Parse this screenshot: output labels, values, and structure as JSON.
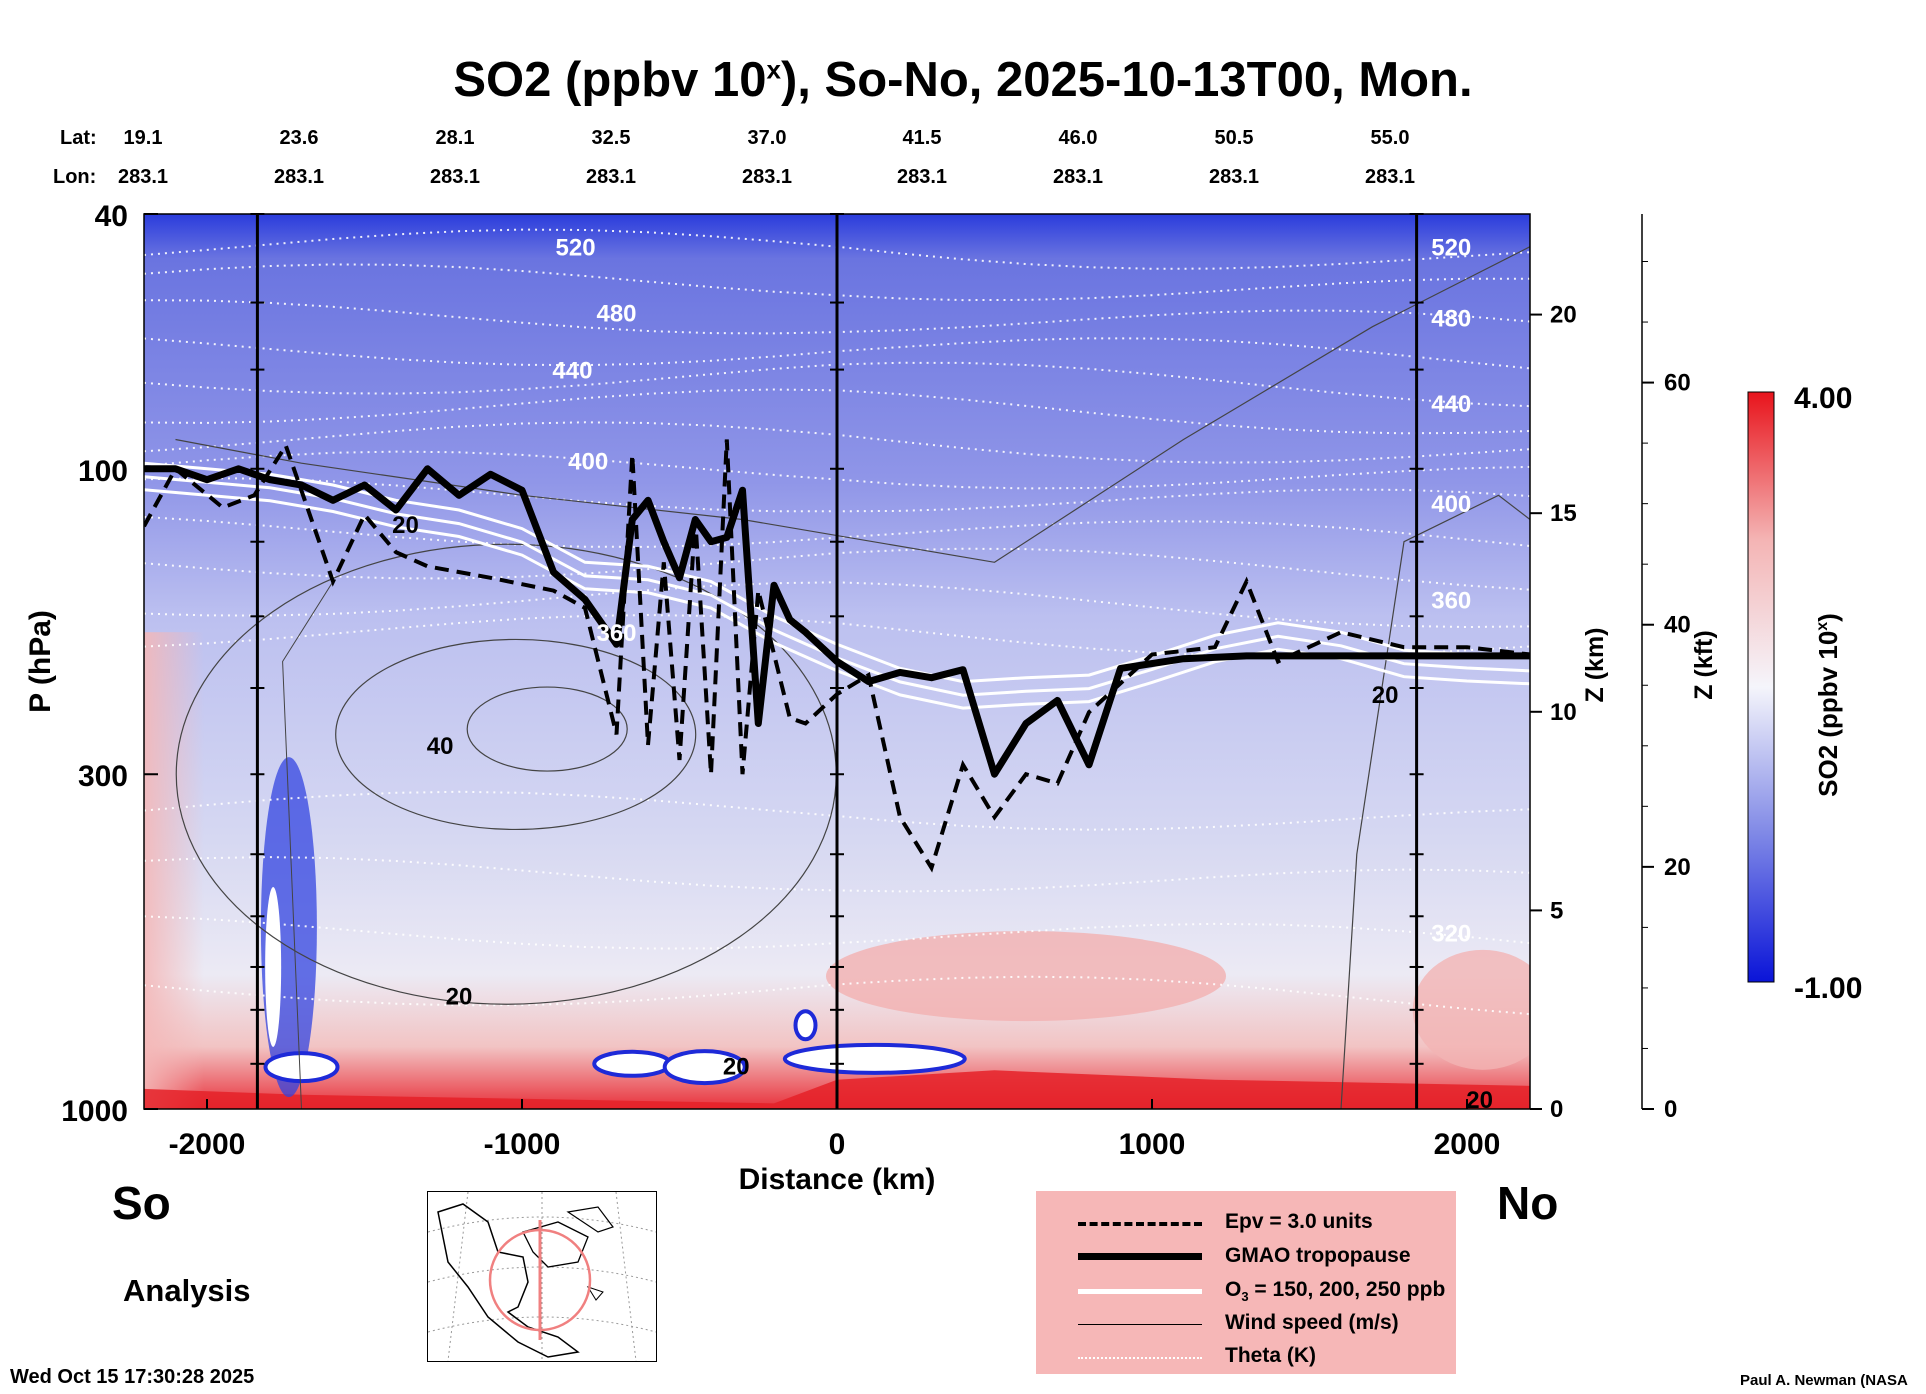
{
  "title": {
    "prefix": "SO2 (ppbv 10",
    "exp": "x",
    "suffix": "), So-No, 2025-10-13T00, Mon."
  },
  "header": {
    "lat_label": "Lat:",
    "lon_label": "Lon:",
    "lats": [
      "19.1",
      "23.6",
      "28.1",
      "32.5",
      "37.0",
      "41.5",
      "46.0",
      "50.5",
      "55.0"
    ],
    "lons": [
      "283.1",
      "283.1",
      "283.1",
      "283.1",
      "283.1",
      "283.1",
      "283.1",
      "283.1",
      "283.1"
    ]
  },
  "labels": {
    "so": "So",
    "no": "No",
    "analysis": "Analysis",
    "timestamp": "Wed Oct 15 17:30:28 2025",
    "credit": "Paul A. Newman (NASA"
  },
  "legend": {
    "epv": "Epv = 3.0 units",
    "tropopause": "GMAO tropopause",
    "ozone_prefix": "O",
    "ozone_sub": "3",
    "ozone_suffix": " = 150, 200, 250 ppb",
    "wind": "Wind speed (m/s)",
    "theta": "Theta (K)"
  },
  "chart_data": {
    "type": "heatmap",
    "title": "SO2 (ppbv 10^x), So-No, 2025-10-13T00, Mon.",
    "xlabel": "Distance (km)",
    "ylabel": "P (hPa)",
    "y2label": "Z (km)",
    "y3label": "Z (kft)",
    "xlim": [
      -2200,
      2200
    ],
    "x_ticks": [
      -2000,
      -1000,
      0,
      1000,
      2000
    ],
    "x_tick_labels": [
      "-2000",
      "-1000",
      "0",
      "1000",
      "2000"
    ],
    "ylim_hpa": [
      1000,
      40
    ],
    "y_ticks_hpa": [
      40,
      100,
      300,
      1000
    ],
    "y_tick_labels": [
      "40",
      "100",
      "300",
      "1000"
    ],
    "z_km_ticks": [
      0,
      5,
      10,
      15,
      20
    ],
    "z_km_tick_labels": [
      "0",
      "5",
      "10",
      "15",
      "20"
    ],
    "z_kft_ticks": [
      0,
      20,
      40,
      60
    ],
    "z_kft_tick_labels": [
      "0",
      "20",
      "40",
      "60"
    ],
    "colorbar": {
      "label": "SO2 (ppbv 10^x)",
      "min": -1.0,
      "max": 4.0,
      "min_label": "-1.00",
      "max_label": "4.00",
      "colors": [
        "#0a14d8",
        "#7f88e6",
        "#f5f5fb",
        "#f4b4b4",
        "#e8141c"
      ]
    },
    "vertical_lines_km": [
      -1840,
      0,
      1840
    ],
    "theta_labels": [
      {
        "x": -830,
        "p": 45,
        "text": "520"
      },
      {
        "x": 1950,
        "p": 45,
        "text": "520"
      },
      {
        "x": -700,
        "p": 57,
        "text": "480"
      },
      {
        "x": 1950,
        "p": 58,
        "text": "480"
      },
      {
        "x": -840,
        "p": 70,
        "text": "440"
      },
      {
        "x": 1950,
        "p": 79,
        "text": "440"
      },
      {
        "x": -790,
        "p": 97,
        "text": "400"
      },
      {
        "x": 1950,
        "p": 113,
        "text": "400"
      },
      {
        "x": 1950,
        "p": 160,
        "text": "360"
      },
      {
        "x": -700,
        "p": 180,
        "text": "360"
      },
      {
        "x": 1950,
        "p": 530,
        "text": "320"
      }
    ],
    "wind_labels": [
      {
        "x": -1370,
        "p": 122,
        "text": "20"
      },
      {
        "x": -1260,
        "p": 270,
        "text": "40"
      },
      {
        "x": -1200,
        "p": 665,
        "text": "20"
      },
      {
        "x": -320,
        "p": 855,
        "text": "20"
      },
      {
        "x": 1740,
        "p": 225,
        "text": "20"
      },
      {
        "x": 2040,
        "p": 965,
        "text": "20"
      }
    ],
    "tropopause_hpa": [
      [
        -2200,
        100
      ],
      [
        -2100,
        100
      ],
      [
        -2000,
        104
      ],
      [
        -1900,
        100
      ],
      [
        -1800,
        104
      ],
      [
        -1700,
        106
      ],
      [
        -1600,
        112
      ],
      [
        -1500,
        106
      ],
      [
        -1400,
        116
      ],
      [
        -1300,
        100
      ],
      [
        -1200,
        110
      ],
      [
        -1100,
        102
      ],
      [
        -1000,
        108
      ],
      [
        -900,
        145
      ],
      [
        -800,
        160
      ],
      [
        -700,
        188
      ],
      [
        -650,
        120
      ],
      [
        -600,
        112
      ],
      [
        -550,
        130
      ],
      [
        -500,
        148
      ],
      [
        -450,
        120
      ],
      [
        -400,
        130
      ],
      [
        -350,
        128
      ],
      [
        -300,
        108
      ],
      [
        -250,
        250
      ],
      [
        -200,
        152
      ],
      [
        -150,
        172
      ],
      [
        -100,
        180
      ],
      [
        0,
        200
      ],
      [
        100,
        215
      ],
      [
        200,
        208
      ],
      [
        300,
        212
      ],
      [
        400,
        206
      ],
      [
        500,
        300
      ],
      [
        600,
        250
      ],
      [
        700,
        230
      ],
      [
        800,
        290
      ],
      [
        900,
        205
      ],
      [
        1100,
        198
      ],
      [
        1300,
        196
      ],
      [
        1600,
        196
      ],
      [
        1800,
        196
      ],
      [
        2200,
        196
      ]
    ],
    "epv_hpa": [
      [
        -2200,
        123
      ],
      [
        -2100,
        100
      ],
      [
        -1950,
        115
      ],
      [
        -1850,
        110
      ],
      [
        -1750,
        92
      ],
      [
        -1600,
        150
      ],
      [
        -1500,
        118
      ],
      [
        -1400,
        135
      ],
      [
        -1300,
        142
      ],
      [
        -1100,
        148
      ],
      [
        -900,
        155
      ],
      [
        -800,
        165
      ],
      [
        -700,
        260
      ],
      [
        -650,
        95
      ],
      [
        -600,
        270
      ],
      [
        -550,
        140
      ],
      [
        -500,
        285
      ],
      [
        -450,
        120
      ],
      [
        -400,
        300
      ],
      [
        -350,
        90
      ],
      [
        -300,
        300
      ],
      [
        -250,
        155
      ],
      [
        -150,
        245
      ],
      [
        -100,
        250
      ],
      [
        0,
        225
      ],
      [
        100,
        210
      ],
      [
        200,
        350
      ],
      [
        300,
        420
      ],
      [
        400,
        290
      ],
      [
        500,
        350
      ],
      [
        600,
        300
      ],
      [
        700,
        310
      ],
      [
        800,
        240
      ],
      [
        1000,
        195
      ],
      [
        1200,
        190
      ],
      [
        1300,
        150
      ],
      [
        1400,
        200
      ],
      [
        1600,
        180
      ],
      [
        1800,
        190
      ],
      [
        2000,
        190
      ],
      [
        2200,
        195
      ]
    ],
    "ozone_hpa": [
      [
        -2200,
        98
      ],
      [
        -2000,
        100
      ],
      [
        -1800,
        102
      ],
      [
        -1600,
        106
      ],
      [
        -1400,
        112
      ],
      [
        -1200,
        116
      ],
      [
        -1000,
        124
      ],
      [
        -800,
        140
      ],
      [
        -600,
        142
      ],
      [
        -400,
        150
      ],
      [
        -200,
        170
      ],
      [
        0,
        188
      ],
      [
        200,
        205
      ],
      [
        400,
        215
      ],
      [
        600,
        212
      ],
      [
        800,
        210
      ],
      [
        1000,
        196
      ],
      [
        1200,
        182
      ],
      [
        1400,
        174
      ],
      [
        1600,
        180
      ],
      [
        1800,
        192
      ],
      [
        2000,
        195
      ],
      [
        2200,
        197
      ]
    ]
  }
}
